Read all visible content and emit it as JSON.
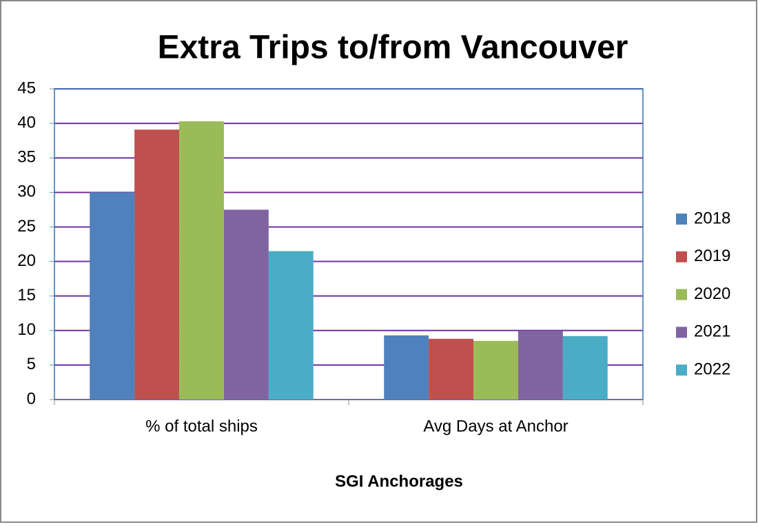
{
  "chart_data": {
    "type": "bar",
    "title": "Extra Trips to/from Vancouver",
    "x_label": "SGI Anchorages",
    "categories": [
      "% of total ships",
      "Avg Days at Anchor"
    ],
    "series": [
      {
        "name": "2018",
        "color": "#4f81bd",
        "values": [
          30.0,
          9.3
        ]
      },
      {
        "name": "2019",
        "color": "#c0504d",
        "values": [
          39.1,
          8.8
        ]
      },
      {
        "name": "2020",
        "color": "#9bbb59",
        "values": [
          40.3,
          8.5
        ]
      },
      {
        "name": "2021",
        "color": "#8064a2",
        "values": [
          27.5,
          9.9
        ]
      },
      {
        "name": "2022",
        "color": "#4bacc6",
        "values": [
          21.5,
          9.2
        ]
      }
    ],
    "ylim": [
      0,
      45
    ],
    "yticks": [
      0,
      5,
      10,
      15,
      20,
      25,
      30,
      35,
      40,
      45
    ],
    "grid": true,
    "legend": "right"
  }
}
